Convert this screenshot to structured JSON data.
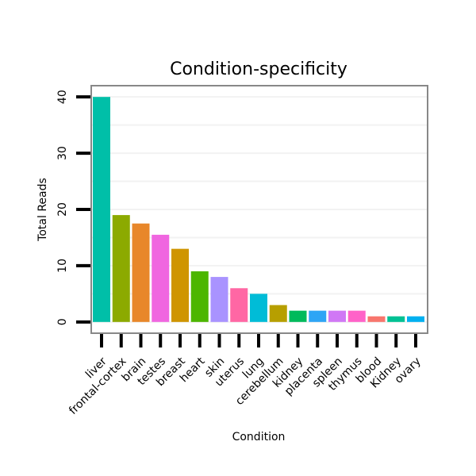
{
  "chart_data": {
    "type": "bar",
    "title": "Condition-specificity",
    "xlabel": "Condition",
    "ylabel": "Total Reads",
    "ylim": [
      -2,
      42
    ],
    "yticks": [
      0,
      10,
      20,
      30,
      40
    ],
    "grid": true,
    "legend": "none",
    "categories": [
      "liver",
      "frontal-cortex",
      "brain",
      "testes",
      "breast",
      "heart",
      "skin",
      "uterus",
      "lung",
      "cerebellum",
      "kidney",
      "placenta",
      "spleen",
      "thymus",
      "blood",
      "Kidney",
      "ovary"
    ],
    "values": [
      40,
      19,
      17.5,
      15.5,
      13,
      9,
      8,
      6,
      5,
      3,
      2,
      2,
      2,
      2,
      1,
      1,
      1
    ],
    "colors": [
      "#00BFA8",
      "#8CAA00",
      "#E8872A",
      "#F066E0",
      "#CF9500",
      "#4CB600",
      "#A993FF",
      "#FF67A4",
      "#00BCD7",
      "#B79F00",
      "#00BA5B",
      "#2EA5F5",
      "#D078F5",
      "#FF62C8",
      "#F8766D",
      "#00C194",
      "#00B0F0"
    ]
  }
}
